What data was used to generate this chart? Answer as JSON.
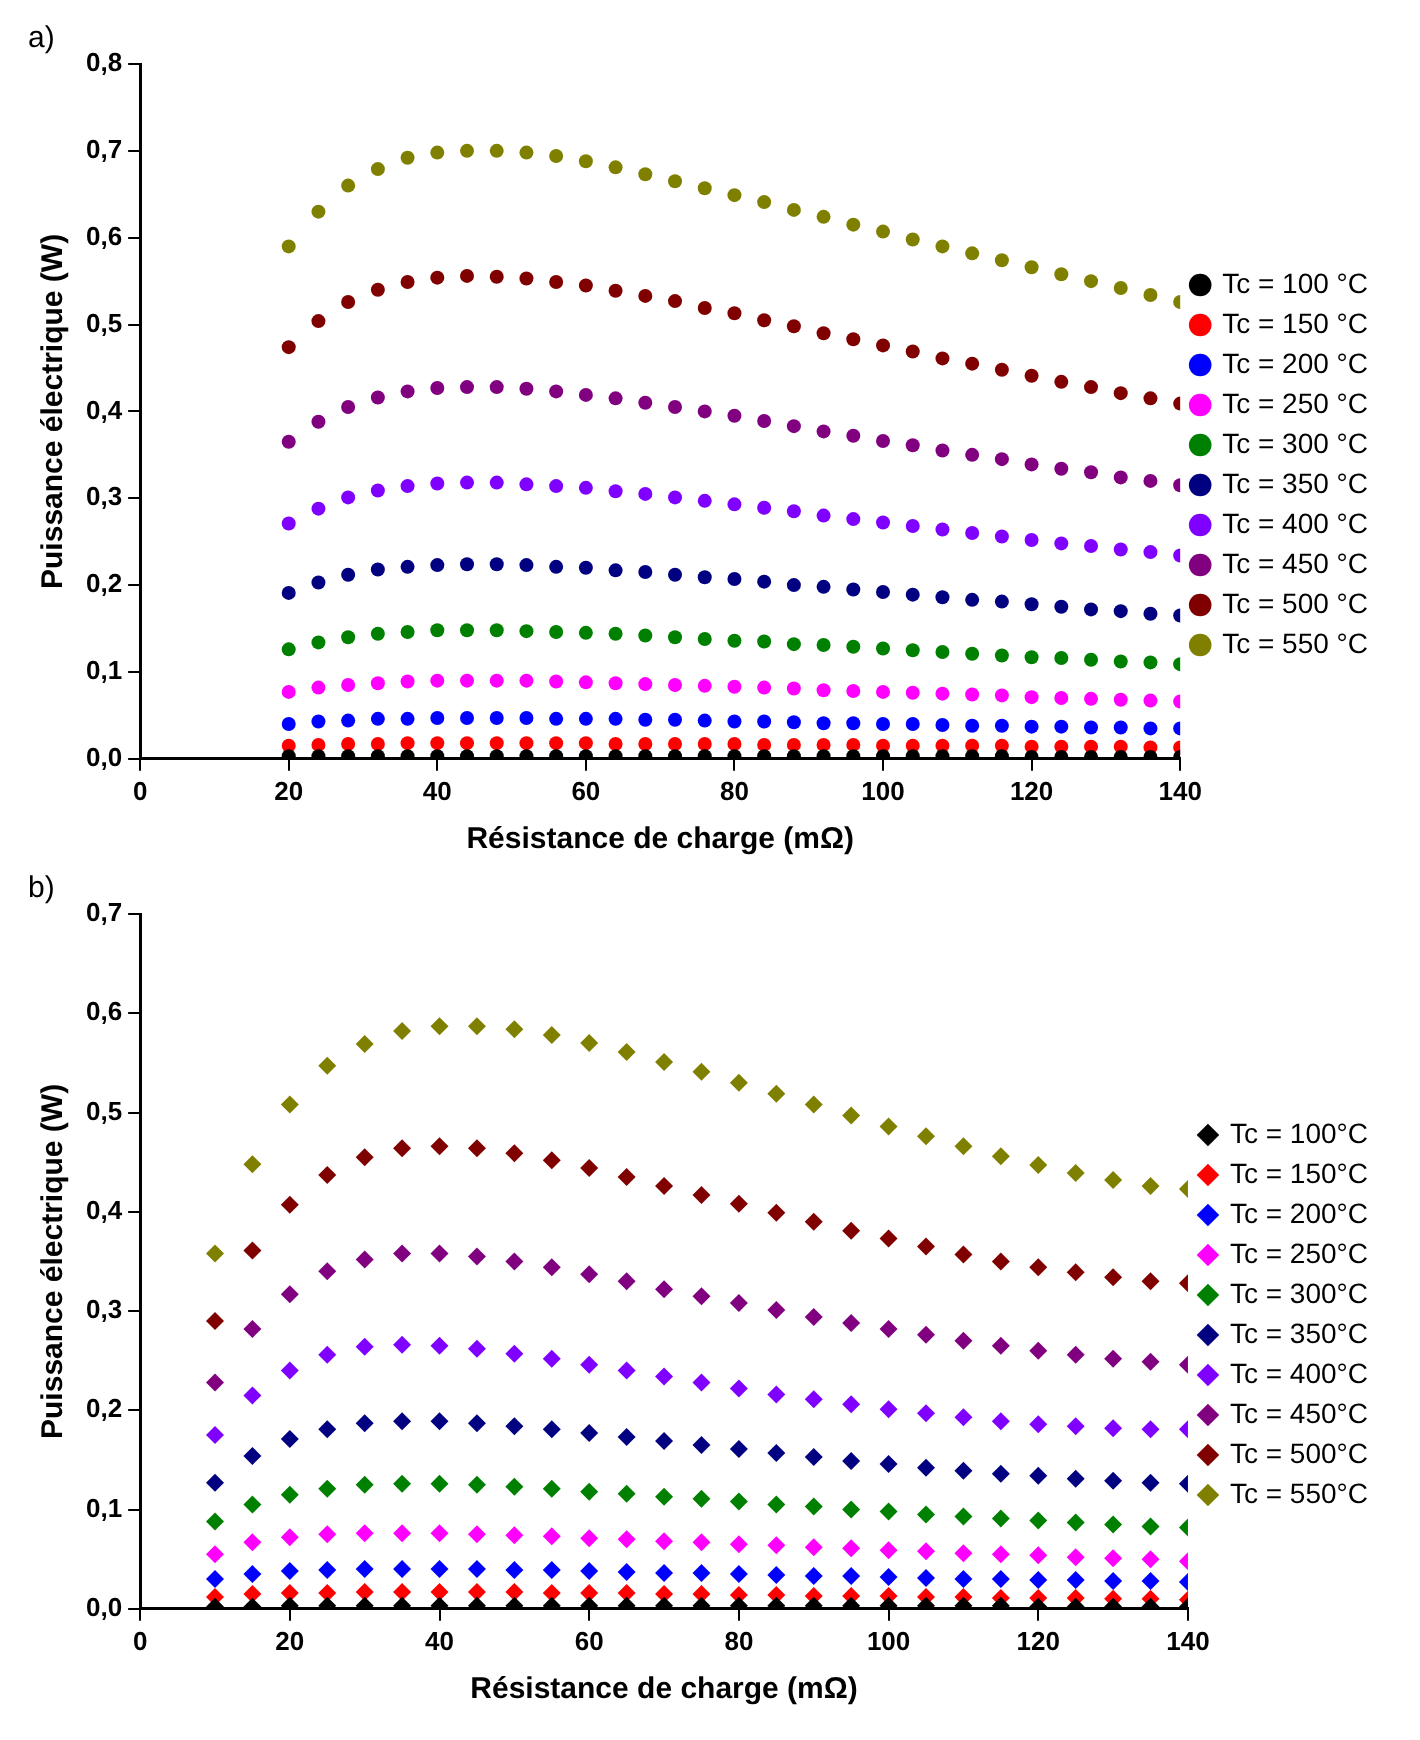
{
  "chart_data": [
    {
      "type": "scatter",
      "annotations": [
        "a)"
      ],
      "xlabel": "Résistance de charge (mΩ)",
      "ylabel": "Puissance électrique (W)",
      "marker": "circle",
      "legend": "right",
      "grid": false,
      "x": [
        20,
        24,
        28,
        32,
        36,
        40,
        44,
        48,
        52,
        56,
        60,
        64,
        68,
        72,
        76,
        80,
        84,
        88,
        92,
        96,
        100,
        104,
        108,
        112,
        116,
        120,
        124,
        128,
        132,
        136,
        140
      ],
      "xlim": [
        0,
        140
      ],
      "xticks": [
        0,
        20,
        40,
        60,
        80,
        100,
        120,
        140
      ],
      "ylim": [
        0,
        0.8
      ],
      "yticks": [
        {
          "value": 0,
          "label": "0,0"
        },
        {
          "value": 0.1,
          "label": "0,1"
        },
        {
          "value": 0.2,
          "label": "0,2"
        },
        {
          "value": 0.3,
          "label": "0,3"
        },
        {
          "value": 0.4,
          "label": "0,4"
        },
        {
          "value": 0.5,
          "label": "0,5"
        },
        {
          "value": 0.6,
          "label": "0,6"
        },
        {
          "value": 0.7,
          "label": "0,7"
        },
        {
          "value": 0.8,
          "label": "0,8"
        }
      ],
      "series": [
        {
          "name": "Tc = 100 °C",
          "color": "#000000",
          "values": [
            0.003,
            0.003,
            0.003,
            0.003,
            0.003,
            0.003,
            0.003,
            0.003,
            0.003,
            0.003,
            0.003,
            0.003,
            0.003,
            0.003,
            0.003,
            0.003,
            0.003,
            0.003,
            0.003,
            0.003,
            0.003,
            0.003,
            0.003,
            0.003,
            0.003,
            0.002,
            0.002,
            0.002,
            0.002,
            0.002,
            0.002
          ]
        },
        {
          "name": "Tc = 150 °C",
          "color": "#ff0000",
          "values": [
            0.015,
            0.016,
            0.017,
            0.017,
            0.018,
            0.018,
            0.018,
            0.018,
            0.018,
            0.018,
            0.018,
            0.017,
            0.017,
            0.017,
            0.017,
            0.017,
            0.016,
            0.016,
            0.016,
            0.016,
            0.015,
            0.015,
            0.015,
            0.015,
            0.015,
            0.014,
            0.014,
            0.014,
            0.014,
            0.013,
            0.013
          ]
        },
        {
          "name": "Tc = 200 °C",
          "color": "#0000ff",
          "values": [
            0.04,
            0.043,
            0.044,
            0.046,
            0.046,
            0.047,
            0.047,
            0.047,
            0.047,
            0.046,
            0.046,
            0.046,
            0.045,
            0.045,
            0.044,
            0.043,
            0.043,
            0.042,
            0.041,
            0.041,
            0.04,
            0.04,
            0.039,
            0.038,
            0.038,
            0.037,
            0.037,
            0.036,
            0.036,
            0.035,
            0.035
          ]
        },
        {
          "name": "Tc = 250 °C",
          "color": "#ff00ff",
          "values": [
            0.077,
            0.082,
            0.085,
            0.087,
            0.089,
            0.09,
            0.09,
            0.09,
            0.09,
            0.089,
            0.088,
            0.087,
            0.086,
            0.085,
            0.084,
            0.083,
            0.082,
            0.081,
            0.079,
            0.078,
            0.077,
            0.076,
            0.075,
            0.074,
            0.073,
            0.071,
            0.07,
            0.069,
            0.068,
            0.067,
            0.066
          ]
        },
        {
          "name": "Tc = 300 °C",
          "color": "#008000",
          "values": [
            0.126,
            0.134,
            0.14,
            0.144,
            0.146,
            0.148,
            0.148,
            0.148,
            0.147,
            0.146,
            0.145,
            0.144,
            0.142,
            0.14,
            0.138,
            0.136,
            0.135,
            0.132,
            0.131,
            0.129,
            0.127,
            0.125,
            0.123,
            0.121,
            0.119,
            0.117,
            0.116,
            0.114,
            0.112,
            0.111,
            0.109
          ]
        },
        {
          "name": "Tc = 350 °C",
          "color": "#000080",
          "values": [
            0.191,
            0.203,
            0.212,
            0.218,
            0.221,
            0.223,
            0.224,
            0.224,
            0.223,
            0.221,
            0.22,
            0.217,
            0.215,
            0.212,
            0.209,
            0.207,
            0.204,
            0.2,
            0.198,
            0.195,
            0.192,
            0.189,
            0.186,
            0.183,
            0.181,
            0.178,
            0.175,
            0.172,
            0.17,
            0.167,
            0.165
          ]
        },
        {
          "name": "Tc = 400 °C",
          "color": "#8000ff",
          "values": [
            0.271,
            0.288,
            0.301,
            0.309,
            0.314,
            0.317,
            0.318,
            0.318,
            0.316,
            0.314,
            0.312,
            0.308,
            0.305,
            0.301,
            0.297,
            0.293,
            0.289,
            0.285,
            0.28,
            0.276,
            0.272,
            0.268,
            0.264,
            0.26,
            0.256,
            0.252,
            0.248,
            0.245,
            0.241,
            0.238,
            0.234
          ]
        },
        {
          "name": "Tc = 450 °C",
          "color": "#800080",
          "values": [
            0.365,
            0.388,
            0.405,
            0.416,
            0.423,
            0.427,
            0.428,
            0.428,
            0.426,
            0.423,
            0.419,
            0.415,
            0.41,
            0.405,
            0.4,
            0.395,
            0.389,
            0.383,
            0.377,
            0.372,
            0.366,
            0.361,
            0.355,
            0.35,
            0.345,
            0.339,
            0.334,
            0.33,
            0.324,
            0.32,
            0.315
          ]
        },
        {
          "name": "Tc = 500 °C",
          "color": "#800000",
          "values": [
            0.474,
            0.504,
            0.526,
            0.54,
            0.549,
            0.554,
            0.556,
            0.555,
            0.553,
            0.549,
            0.545,
            0.539,
            0.533,
            0.527,
            0.519,
            0.513,
            0.505,
            0.498,
            0.49,
            0.483,
            0.476,
            0.469,
            0.461,
            0.455,
            0.448,
            0.441,
            0.434,
            0.428,
            0.421,
            0.415,
            0.409
          ]
        },
        {
          "name": "Tc = 550 °C",
          "color": "#808000",
          "values": [
            0.59,
            0.63,
            0.66,
            0.679,
            0.692,
            0.698,
            0.7,
            0.7,
            0.698,
            0.694,
            0.688,
            0.681,
            0.673,
            0.665,
            0.657,
            0.649,
            0.641,
            0.632,
            0.624,
            0.615,
            0.607,
            0.598,
            0.59,
            0.582,
            0.574,
            0.566,
            0.558,
            0.55,
            0.542,
            0.534,
            0.526
          ]
        }
      ]
    },
    {
      "type": "scatter",
      "annotations": [
        "b)"
      ],
      "xlabel": "Résistance de charge (mΩ)",
      "ylabel": "Puissance électrique (W)",
      "marker": "diamond",
      "legend": "right",
      "grid": false,
      "x": [
        10,
        15,
        20,
        25,
        30,
        35,
        40,
        45,
        50,
        55,
        60,
        65,
        70,
        75,
        80,
        85,
        90,
        95,
        100,
        105,
        110,
        115,
        120,
        125,
        130,
        135,
        140
      ],
      "xlim": [
        0,
        140
      ],
      "xticks": [
        0,
        20,
        40,
        60,
        80,
        100,
        120,
        140
      ],
      "ylim": [
        0,
        0.7
      ],
      "yticks": [
        {
          "value": 0,
          "label": "0,0"
        },
        {
          "value": 0.1,
          "label": "0,1"
        },
        {
          "value": 0.2,
          "label": "0,2"
        },
        {
          "value": 0.3,
          "label": "0,3"
        },
        {
          "value": 0.4,
          "label": "0,4"
        },
        {
          "value": 0.5,
          "label": "0,5"
        },
        {
          "value": 0.6,
          "label": "0,6"
        },
        {
          "value": 0.7,
          "label": "0,7"
        }
      ],
      "series": [
        {
          "name": "Tc = 100°C",
          "color": "#000000",
          "values": [
            0.002,
            0.002,
            0.003,
            0.003,
            0.003,
            0.003,
            0.003,
            0.003,
            0.003,
            0.003,
            0.003,
            0.003,
            0.003,
            0.003,
            0.003,
            0.003,
            0.003,
            0.003,
            0.003,
            0.003,
            0.003,
            0.003,
            0.002,
            0.002,
            0.002,
            0.002,
            0.002
          ]
        },
        {
          "name": "Tc = 150°C",
          "color": "#ff0000",
          "values": [
            0.012,
            0.015,
            0.016,
            0.016,
            0.017,
            0.017,
            0.017,
            0.017,
            0.017,
            0.016,
            0.016,
            0.016,
            0.015,
            0.015,
            0.014,
            0.014,
            0.013,
            0.013,
            0.013,
            0.012,
            0.012,
            0.011,
            0.011,
            0.011,
            0.01,
            0.01,
            0.009
          ]
        },
        {
          "name": "Tc = 200°C",
          "color": "#0000ff",
          "values": [
            0.03,
            0.035,
            0.038,
            0.039,
            0.04,
            0.04,
            0.04,
            0.04,
            0.039,
            0.039,
            0.038,
            0.037,
            0.036,
            0.036,
            0.035,
            0.034,
            0.033,
            0.033,
            0.032,
            0.031,
            0.03,
            0.03,
            0.029,
            0.029,
            0.028,
            0.028,
            0.027
          ]
        },
        {
          "name": "Tc = 250°C",
          "color": "#ff00ff",
          "values": [
            0.055,
            0.067,
            0.072,
            0.075,
            0.076,
            0.076,
            0.076,
            0.075,
            0.074,
            0.073,
            0.071,
            0.07,
            0.068,
            0.067,
            0.065,
            0.064,
            0.062,
            0.061,
            0.059,
            0.058,
            0.056,
            0.055,
            0.054,
            0.052,
            0.051,
            0.05,
            0.048
          ]
        },
        {
          "name": "Tc = 300°C",
          "color": "#008000",
          "values": [
            0.088,
            0.105,
            0.115,
            0.121,
            0.125,
            0.126,
            0.126,
            0.125,
            0.123,
            0.121,
            0.118,
            0.116,
            0.113,
            0.111,
            0.108,
            0.105,
            0.103,
            0.1,
            0.098,
            0.095,
            0.093,
            0.091,
            0.089,
            0.087,
            0.085,
            0.083,
            0.082
          ]
        },
        {
          "name": "Tc = 350°C",
          "color": "#000080",
          "values": [
            0.127,
            0.154,
            0.171,
            0.181,
            0.187,
            0.189,
            0.189,
            0.187,
            0.184,
            0.181,
            0.177,
            0.173,
            0.169,
            0.165,
            0.161,
            0.157,
            0.153,
            0.149,
            0.146,
            0.142,
            0.139,
            0.136,
            0.134,
            0.131,
            0.129,
            0.127,
            0.126
          ]
        },
        {
          "name": "Tc = 400°C",
          "color": "#8000ff",
          "values": [
            0.175,
            0.215,
            0.24,
            0.256,
            0.264,
            0.266,
            0.265,
            0.262,
            0.257,
            0.252,
            0.246,
            0.24,
            0.234,
            0.228,
            0.222,
            0.216,
            0.211,
            0.206,
            0.201,
            0.197,
            0.193,
            0.189,
            0.186,
            0.184,
            0.182,
            0.181,
            0.181
          ]
        },
        {
          "name": "Tc = 450°C",
          "color": "#800080",
          "values": [
            0.228,
            0.282,
            0.317,
            0.34,
            0.352,
            0.358,
            0.358,
            0.355,
            0.35,
            0.344,
            0.337,
            0.33,
            0.322,
            0.315,
            0.308,
            0.301,
            0.294,
            0.288,
            0.282,
            0.276,
            0.27,
            0.265,
            0.26,
            0.256,
            0.252,
            0.249,
            0.246
          ]
        },
        {
          "name": "Tc = 500°C",
          "color": "#800000",
          "values": [
            0.29,
            0.361,
            0.407,
            0.437,
            0.455,
            0.464,
            0.466,
            0.464,
            0.459,
            0.452,
            0.444,
            0.435,
            0.426,
            0.417,
            0.408,
            0.399,
            0.39,
            0.381,
            0.373,
            0.365,
            0.357,
            0.35,
            0.344,
            0.339,
            0.334,
            0.33,
            0.328
          ]
        },
        {
          "name": "Tc = 550°C",
          "color": "#808000",
          "values": [
            0.358,
            0.448,
            0.508,
            0.547,
            0.569,
            0.582,
            0.587,
            0.587,
            0.584,
            0.578,
            0.57,
            0.561,
            0.551,
            0.541,
            0.53,
            0.519,
            0.508,
            0.497,
            0.486,
            0.476,
            0.466,
            0.456,
            0.447,
            0.439,
            0.432,
            0.426,
            0.423
          ]
        }
      ]
    }
  ]
}
